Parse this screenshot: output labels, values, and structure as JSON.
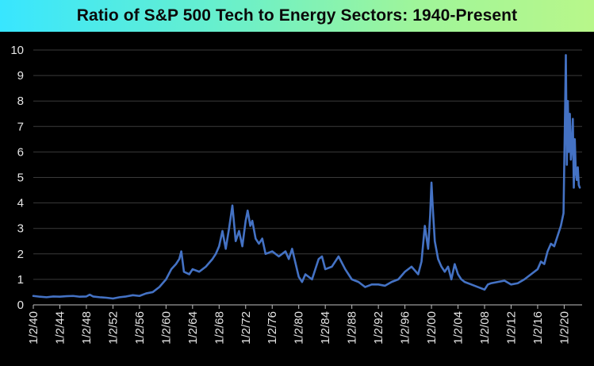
{
  "title": "Ratio of S&P 500 Tech to Energy Sectors: 1940-Present",
  "colors": {
    "background": "#000000",
    "line": "#4472c4",
    "axis": "#bfbfbf",
    "grid": "#3a3a3a",
    "text": "#e6e6e6"
  },
  "chart_data": {
    "type": "line",
    "title": "Ratio of S&P 500 Tech to Energy Sectors: 1940-Present",
    "xlabel": "",
    "ylabel": "",
    "xlim": [
      1940,
      2022.7
    ],
    "ylim": [
      0,
      10
    ],
    "yticks": [
      "0",
      "1",
      "2",
      "3",
      "4",
      "5",
      "6",
      "7",
      "8",
      "9",
      "10"
    ],
    "xticks": [
      "1/2/40",
      "1/2/44",
      "1/2/48",
      "1/2/52",
      "1/2/56",
      "1/2/60",
      "1/2/64",
      "1/2/68",
      "1/2/72",
      "1/2/76",
      "1/2/80",
      "1/2/84",
      "1/2/88",
      "1/2/92",
      "1/2/96",
      "1/2/00",
      "1/2/04",
      "1/2/08",
      "1/2/12",
      "1/2/16",
      "1/2/20"
    ],
    "xtick_years": [
      1940,
      1944,
      1948,
      1952,
      1956,
      1960,
      1964,
      1968,
      1972,
      1976,
      1980,
      1984,
      1988,
      1992,
      1996,
      2000,
      2004,
      2008,
      2012,
      2016,
      2020
    ],
    "grid": true,
    "legend": "none",
    "series": [
      {
        "x": [
          1940,
          1941,
          1942,
          1943,
          1944,
          1945,
          1946,
          1947,
          1948,
          1948.5,
          1949,
          1950,
          1951,
          1952,
          1953,
          1954,
          1955,
          1956,
          1957,
          1958,
          1959,
          1960,
          1960.8,
          1961.5,
          1962,
          1962.3,
          1962.7,
          1963.5,
          1964,
          1965,
          1966,
          1967,
          1967.5,
          1968,
          1968.5,
          1969,
          1969.5,
          1970,
          1970.5,
          1971,
          1971.5,
          1972,
          1972.3,
          1972.7,
          1973,
          1973.5,
          1974,
          1974.5,
          1975,
          1976,
          1977,
          1978,
          1978.5,
          1979,
          1980,
          1980.5,
          1981,
          1982,
          1983,
          1983.5,
          1984,
          1985,
          1986,
          1987,
          1987.5,
          1988,
          1989,
          1990,
          1991,
          1992,
          1993,
          1994,
          1995,
          1996,
          1997,
          1998,
          1998.5,
          1999,
          1999.5,
          1999.8,
          2000,
          2000.2,
          2000.5,
          2001,
          2001.5,
          2002,
          2002.5,
          2003,
          2003.5,
          2004,
          2004.5,
          2005,
          2006,
          2007,
          2008,
          2008.5,
          2009,
          2010,
          2011,
          2012,
          2013,
          2014,
          2015,
          2016,
          2016.5,
          2017,
          2017.5,
          2018,
          2018.5,
          2019,
          2019.5,
          2019.9,
          2020.1,
          2020.25,
          2020.4,
          2020.55,
          2020.7,
          2020.85,
          2021,
          2021.15,
          2021.3,
          2021.45,
          2021.6,
          2021.75,
          2021.9,
          2022.05,
          2022.2,
          2022.35
        ],
        "y": [
          0.35,
          0.32,
          0.3,
          0.33,
          0.32,
          0.34,
          0.35,
          0.32,
          0.33,
          0.4,
          0.33,
          0.3,
          0.28,
          0.25,
          0.3,
          0.33,
          0.38,
          0.35,
          0.45,
          0.5,
          0.7,
          1.0,
          1.4,
          1.6,
          1.8,
          2.1,
          1.3,
          1.2,
          1.4,
          1.3,
          1.5,
          1.8,
          2.0,
          2.3,
          2.9,
          2.2,
          3.0,
          3.9,
          2.5,
          2.9,
          2.3,
          3.3,
          3.7,
          3.1,
          3.3,
          2.6,
          2.4,
          2.6,
          2.0,
          2.1,
          1.9,
          2.1,
          1.8,
          2.2,
          1.1,
          0.9,
          1.2,
          1.0,
          1.8,
          1.9,
          1.4,
          1.5,
          1.9,
          1.4,
          1.2,
          1.0,
          0.9,
          0.7,
          0.8,
          0.8,
          0.75,
          0.9,
          1.0,
          1.3,
          1.5,
          1.2,
          1.7,
          3.1,
          2.2,
          3.5,
          4.8,
          3.8,
          2.5,
          1.8,
          1.5,
          1.3,
          1.5,
          1.0,
          1.6,
          1.2,
          1.0,
          0.9,
          0.8,
          0.7,
          0.6,
          0.8,
          0.85,
          0.9,
          0.95,
          0.8,
          0.85,
          1.0,
          1.2,
          1.4,
          1.7,
          1.6,
          2.1,
          2.4,
          2.3,
          2.7,
          3.1,
          3.6,
          7.0,
          9.8,
          5.5,
          8.0,
          6.0,
          7.5,
          5.7,
          6.2,
          7.3,
          4.6,
          6.5,
          5.2,
          4.9,
          5.4,
          4.7,
          4.6
        ]
      }
    ]
  }
}
